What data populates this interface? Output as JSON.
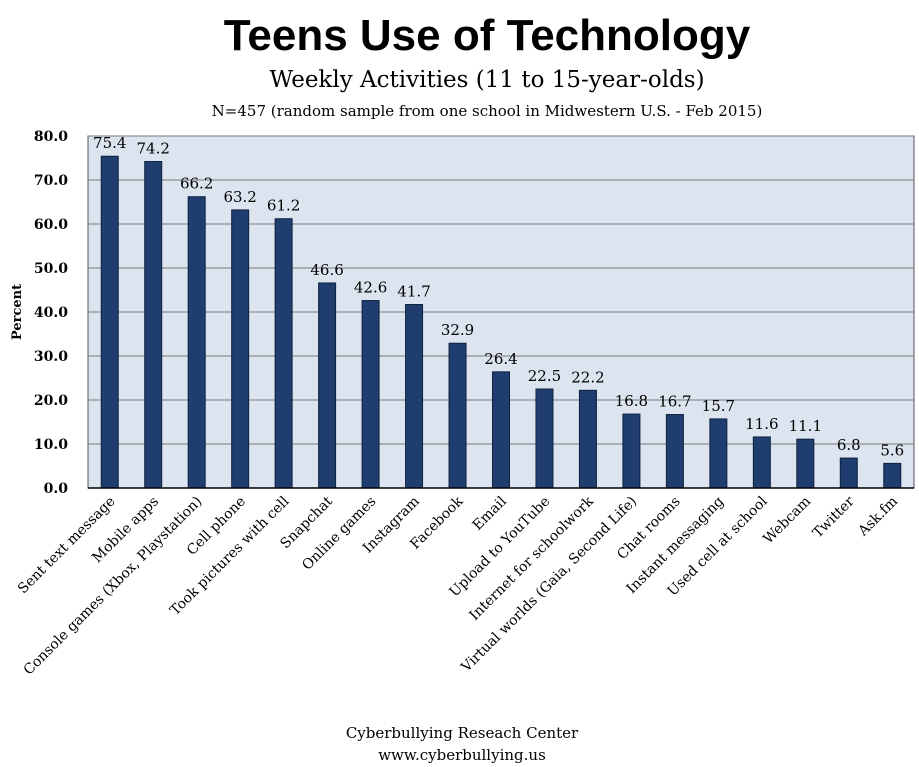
{
  "chart_data": {
    "type": "bar",
    "title": "Teens Use of Technology",
    "subtitle": "Weekly Activities (11 to 15-year-olds)",
    "note": "N=457 (random sample from one school in Midwestern U.S. - Feb 2015)",
    "ylabel": "Percent",
    "xlabel": "",
    "ylim": [
      0,
      80
    ],
    "yticks": [
      "0.0",
      "10.0",
      "20.0",
      "30.0",
      "40.0",
      "50.0",
      "60.0",
      "70.0",
      "80.0"
    ],
    "grid": true,
    "categories": [
      "Sent text message",
      "Mobile apps",
      "Console games (Xbox, Playstation)",
      "Cell phone",
      "Took pictures with cell",
      "Snapchat",
      "Online games",
      "Instagram",
      "Facebook",
      "Email",
      "Upload to YouTube",
      "Internet for schoolwork",
      "Virtual worlds (Gaia, Second Life)",
      "Chat rooms",
      "Instant messaging",
      "Used cell at school",
      "Webcam",
      "Twitter",
      "Ask.fm"
    ],
    "values": [
      75.4,
      74.2,
      66.2,
      63.2,
      61.2,
      46.6,
      42.6,
      41.7,
      32.9,
      26.4,
      22.5,
      22.2,
      16.8,
      16.7,
      15.7,
      11.6,
      11.1,
      6.8,
      5.6
    ],
    "data_labels": [
      "75.4",
      "74.2",
      "66.2",
      "63.2",
      "61.2",
      "46.6",
      "42.6",
      "41.7",
      "32.9",
      "26.4",
      "22.5",
      "22.2",
      "16.8",
      "16.7",
      "15.7",
      "11.6",
      "11.1",
      "6.8",
      "5.6"
    ],
    "colors": {
      "bar": "#1f3d6e",
      "plot_bg": "#dbe4ef",
      "grid": "#7a7a7a"
    }
  },
  "footer": {
    "line1": "Cyberbullying Reseach Center",
    "line2": "www.cyberbullying.us"
  }
}
